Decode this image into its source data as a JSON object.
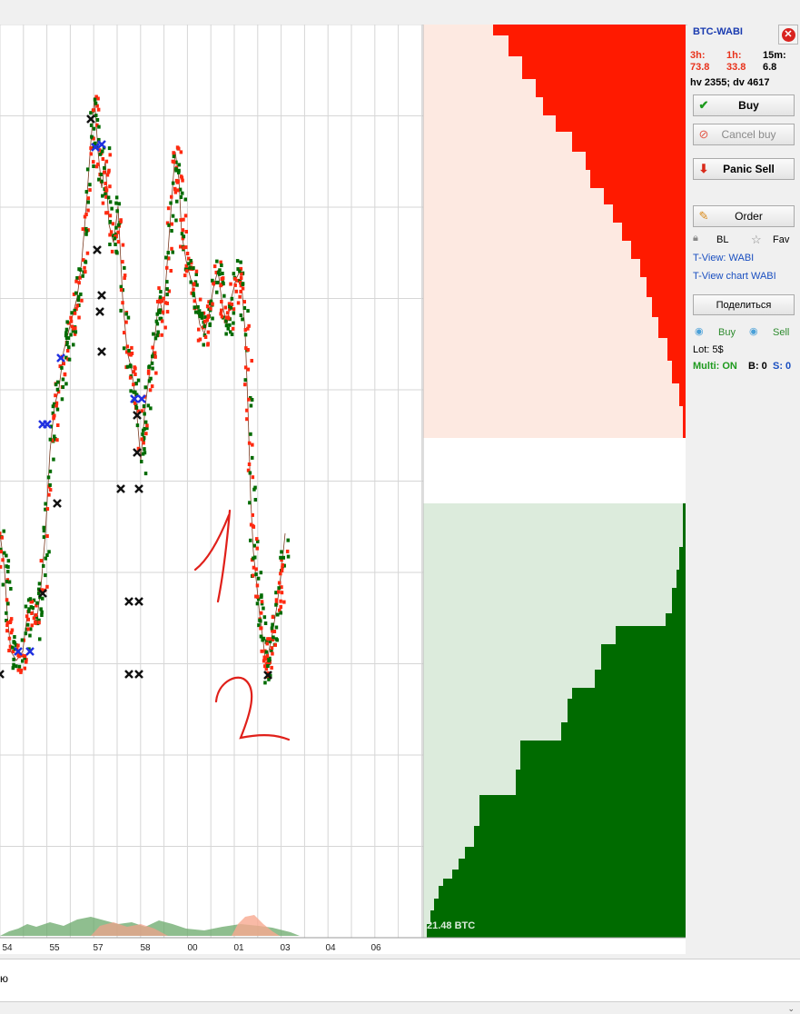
{
  "pair": "BTC-WABI",
  "stats": {
    "h3_label": "3h:",
    "h3_value": "73.8",
    "h1_label": "1h:",
    "h1_value": "33.8",
    "m15_label": "15m:",
    "m15_value": "6.8",
    "hv_dv": "hv 2355; dv 4617"
  },
  "buttons": {
    "buy": "Buy",
    "cancel_buy": "Cancel buy",
    "panic_sell": "Panic Sell",
    "order": "Order",
    "share": "Поделиться"
  },
  "toggles": {
    "bl": "BL",
    "fav": "Fav"
  },
  "links": {
    "tview": "T-View: WABI",
    "tview_chart": "T-View chart WABI"
  },
  "signals": {
    "buy": "Buy",
    "sell": "Sell"
  },
  "lot": "Lot: 5$",
  "multi": {
    "label": "Multi: ON",
    "b": "B: 0",
    "s": "S: 0"
  },
  "depth_label": "21.48 BTC",
  "x_ticks": [
    "54",
    "55",
    "57",
    "58",
    "00",
    "01",
    "03",
    "04",
    "06"
  ],
  "status_text": "ю",
  "annotations": [
    "1",
    "2"
  ],
  "colors": {
    "buy_green": "#006b00",
    "sell_red": "#ff1a00",
    "bid_bg": "#dcebdc",
    "ask_bg": "#fde9e1",
    "annotation": "#e0201a"
  }
}
